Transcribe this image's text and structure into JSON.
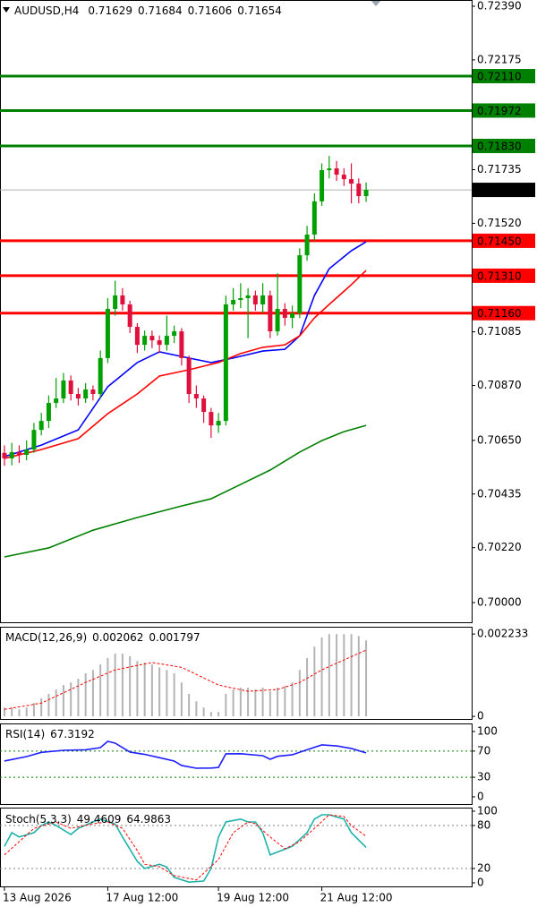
{
  "chart_data": [
    {
      "type": "candlestick",
      "title": "AUDUSD,H4",
      "up_color": "#00a000",
      "down_color": "#e0103c",
      "open": [
        0.706,
        0.70578,
        0.70603,
        0.70592,
        0.70613,
        0.70692,
        0.70728,
        0.708,
        0.70818,
        0.7089,
        0.70836,
        0.70818,
        0.70854,
        0.70836,
        0.7098,
        0.71177,
        0.71231,
        0.71195,
        0.71105,
        0.71033,
        0.71069,
        0.71051,
        0.71033,
        0.71069,
        0.71087,
        0.7098,
        0.70836,
        0.70818,
        0.70764,
        0.7071,
        0.70728,
        0.71195,
        0.71213,
        0.7122,
        0.71231,
        0.71195,
        0.71231,
        0.71087,
        0.71177,
        0.71141,
        0.71159,
        0.71392,
        0.71475,
        0.71608,
        0.71733,
        0.7174,
        0.71715,
        0.71697,
        0.71679,
        0.71629
      ],
      "high": [
        0.7063,
        0.7064,
        0.7063,
        0.7065,
        0.7072,
        0.7076,
        0.7083,
        0.709,
        0.7092,
        0.7091,
        0.7086,
        0.7088,
        0.7087,
        0.7101,
        0.7122,
        0.7129,
        0.7126,
        0.7121,
        0.7112,
        0.7109,
        0.7109,
        0.7107,
        0.7115,
        0.7111,
        0.711,
        0.7099,
        0.7087,
        0.7083,
        0.7078,
        0.7076,
        0.7123,
        0.7126,
        0.7128,
        0.7126,
        0.7125,
        0.7128,
        0.7125,
        0.7132,
        0.712,
        0.7119,
        0.7142,
        0.7151,
        0.7164,
        0.7176,
        0.7179,
        0.7177,
        0.7174,
        0.7176,
        0.717,
        0.71684
      ],
      "low": [
        0.70548,
        0.7055,
        0.7056,
        0.7057,
        0.706,
        0.7067,
        0.707,
        0.7078,
        0.708,
        0.7081,
        0.7079,
        0.708,
        0.7081,
        0.7082,
        0.7096,
        0.7115,
        0.7117,
        0.7108,
        0.71,
        0.7101,
        0.7102,
        0.71,
        0.7101,
        0.7104,
        0.7095,
        0.708,
        0.7078,
        0.7072,
        0.7066,
        0.7068,
        0.7071,
        0.7117,
        0.7118,
        0.7106,
        0.7117,
        0.7116,
        0.7106,
        0.7107,
        0.7111,
        0.711,
        0.7114,
        0.7137,
        0.7145,
        0.7159,
        0.717,
        0.7169,
        0.7167,
        0.716,
        0.716,
        0.71606
      ],
      "close": [
        0.70578,
        0.70603,
        0.70592,
        0.70613,
        0.70692,
        0.70728,
        0.708,
        0.70818,
        0.7089,
        0.70836,
        0.70818,
        0.70854,
        0.70836,
        0.7098,
        0.71177,
        0.71231,
        0.71195,
        0.71105,
        0.71033,
        0.71069,
        0.71051,
        0.71033,
        0.71069,
        0.71087,
        0.7098,
        0.70836,
        0.70818,
        0.70764,
        0.7071,
        0.70728,
        0.71195,
        0.71213,
        0.7122,
        0.71231,
        0.71195,
        0.71231,
        0.71087,
        0.71177,
        0.71141,
        0.71159,
        0.71392,
        0.71475,
        0.71608,
        0.71733,
        0.7174,
        0.71715,
        0.71697,
        0.71679,
        0.71629,
        0.71654
      ],
      "series": [
        {
          "style": "solid",
          "color": "#0000ff",
          "x": [
            0,
            5,
            10,
            14,
            18,
            21,
            25,
            28,
            31,
            35,
            38,
            40,
            42,
            44,
            47,
            49
          ],
          "values": [
            0.70585,
            0.70631,
            0.70692,
            0.70865,
            0.70962,
            0.71005,
            0.7098,
            0.70962,
            0.7098,
            0.71008,
            0.71015,
            0.71069,
            0.71231,
            0.71338,
            0.7141,
            0.71446
          ]
        },
        {
          "style": "solid",
          "color": "#ff0000",
          "x": [
            0,
            5,
            10,
            14,
            18,
            21,
            25,
            29,
            32,
            35,
            38,
            40,
            42,
            44,
            47,
            49
          ],
          "values": [
            0.70578,
            0.70613,
            0.70657,
            0.70757,
            0.70836,
            0.70908,
            0.70933,
            0.70962,
            0.70998,
            0.71023,
            0.71033,
            0.71069,
            0.71141,
            0.71195,
            0.71274,
            0.71331
          ]
        },
        {
          "style": "solid",
          "color": "#008000",
          "x": [
            0,
            6,
            12,
            18,
            24,
            28,
            31,
            36,
            40,
            43,
            46,
            49
          ],
          "values": [
            0.70183,
            0.70219,
            0.7029,
            0.70341,
            0.70387,
            0.70416,
            0.70459,
            0.70531,
            0.70603,
            0.70649,
            0.70685,
            0.7071
          ]
        }
      ],
      "levels": [
        {
          "value": 0.7211,
          "label": "0.72110",
          "color": "#008000"
        },
        {
          "value": 0.71972,
          "label": "0.71972",
          "color": "#008000"
        },
        {
          "value": 0.7183,
          "label": "0.71830",
          "color": "#008000"
        },
        {
          "value": 0.7145,
          "label": "0.71450",
          "color": "#ff0000"
        },
        {
          "value": 0.7131,
          "label": "0.71310",
          "color": "#ff0000"
        },
        {
          "value": 0.7116,
          "label": "0.71160",
          "color": "#ff0000"
        }
      ],
      "ylim": [
        0.69921,
        0.72415
      ],
      "yticks": [
        {
          "value": 0.7239,
          "label": "0.72390"
        },
        0.72175,
        0.71735,
        {
          "value": 0.7152,
          "label": "0.71520"
        },
        0.71085,
        {
          "value": 0.7087,
          "label": "0.70870"
        },
        {
          "value": 0.7065,
          "label": "0.70650"
        },
        0.70435,
        {
          "value": 0.7022,
          "label": "0.70220"
        },
        {
          "value": 0.7,
          "label": "0.70000"
        }
      ],
      "xlim": [
        -0.6,
        63.3
      ],
      "xticks": [
        {
          "value": 0,
          "label": "13 Aug 2026"
        },
        {
          "value": 14,
          "label": "17 Aug 12:00"
        },
        {
          "value": 29,
          "label": "19 Aug 12:00"
        },
        {
          "value": 43,
          "label": "21 Aug 12:00"
        }
      ]
    },
    {
      "type": "indicator",
      "title": "MACD(12,26,9)",
      "ylim": [
        -7e-05,
        0.00243
      ],
      "yticks": [
        0.002233,
        0
      ],
      "series": [
        {
          "style": "histogram",
          "color": "#b4b4b4",
          "values": [
            0.00024,
            0.00024,
            0.00019,
            0.00024,
            0.00036,
            0.00049,
            0.00061,
            0.00073,
            0.00085,
            0.00092,
            0.00102,
            0.00117,
            0.00126,
            0.00141,
            0.00158,
            0.0017,
            0.0017,
            0.00163,
            0.0015,
            0.00146,
            0.00141,
            0.00133,
            0.00126,
            0.00117,
            0.00092,
            0.00061,
            0.00041,
            0.00024,
            0.00012,
            0.00012,
            0.00061,
            0.00073,
            0.00078,
            0.00078,
            0.00073,
            0.00078,
            0.00068,
            0.00078,
            0.00083,
            0.00092,
            0.00126,
            0.00158,
            0.00189,
            0.00214,
            0.00223,
            0.00223,
            0.00223,
            0.00223,
            0.00218,
            0.002062
          ]
        },
        {
          "style": "dashed",
          "color": "#ff0000",
          "x": [
            0,
            5,
            11,
            15,
            20,
            24,
            29,
            33,
            37,
            40,
            43,
            46,
            49
          ],
          "values": [
            0.00019,
            0.00036,
            0.00092,
            0.00126,
            0.00146,
            0.00133,
            0.00085,
            0.00068,
            0.00073,
            0.00092,
            0.00126,
            0.00153,
            0.001797
          ]
        }
      ]
    },
    {
      "type": "indicator",
      "title": "RSI(14)",
      "ylim": [
        -11,
        112.3
      ],
      "yticks": [
        100,
        70,
        30,
        0
      ],
      "levels": [
        70,
        30
      ],
      "level_color": "#008000",
      "series": [
        {
          "style": "solid",
          "color": "#1e1eff",
          "x": [
            0,
            3,
            5,
            8,
            11,
            13,
            14,
            15,
            17,
            19,
            21,
            23,
            24,
            26,
            28,
            29,
            30,
            32,
            35,
            36,
            37,
            39,
            41,
            43,
            45,
            47,
            49
          ],
          "values": [
            54.8,
            61.6,
            68,
            71.2,
            72,
            75.3,
            84.9,
            82.2,
            68.5,
            65,
            60,
            54.8,
            48,
            43.8,
            44,
            45,
            65.8,
            66,
            63,
            57.5,
            62,
            64.4,
            72,
            79.5,
            78,
            74,
            67.3192
          ]
        }
      ]
    },
    {
      "type": "indicator",
      "title": "Stoch(5,3,3)",
      "ylim": [
        -5,
        105
      ],
      "yticks": [
        100,
        80,
        20,
        0
      ],
      "levels": [
        80,
        20
      ],
      "level_color": "#808080",
      "series": [
        {
          "style": "solid",
          "color": "#20b2aa",
          "x": [
            0,
            1,
            2,
            4,
            5,
            6,
            7,
            9,
            10,
            12,
            13,
            15,
            16,
            18,
            19,
            21,
            22,
            23,
            25,
            27,
            28,
            29,
            30,
            32,
            33,
            34,
            35,
            36,
            38,
            39,
            41,
            42,
            43,
            44,
            46,
            47,
            49
          ],
          "values": [
            51,
            70,
            64,
            70,
            80,
            85,
            80,
            67.5,
            76,
            85,
            89,
            82,
            64,
            30,
            20,
            26,
            22,
            7.5,
            1,
            2.5,
            20,
            64,
            85,
            89,
            85,
            85,
            70,
            39,
            47,
            51,
            70,
            89,
            95,
            95,
            89,
            70,
            49.4609
          ]
        },
        {
          "style": "dashed",
          "color": "#ff0000",
          "x": [
            0,
            2,
            4,
            7,
            9,
            12,
            14,
            16,
            18,
            19,
            21,
            23,
            26,
            29,
            31,
            33,
            34,
            36,
            38,
            40,
            42,
            44,
            46,
            47,
            49
          ],
          "values": [
            39,
            57.5,
            76,
            85,
            76,
            82.5,
            85,
            76,
            45,
            26,
            22.5,
            10,
            4,
            32.5,
            70,
            85,
            82.5,
            64,
            47.5,
            57.5,
            76,
            95,
            92.5,
            80,
            64.9863
          ]
        }
      ]
    }
  ]
}
